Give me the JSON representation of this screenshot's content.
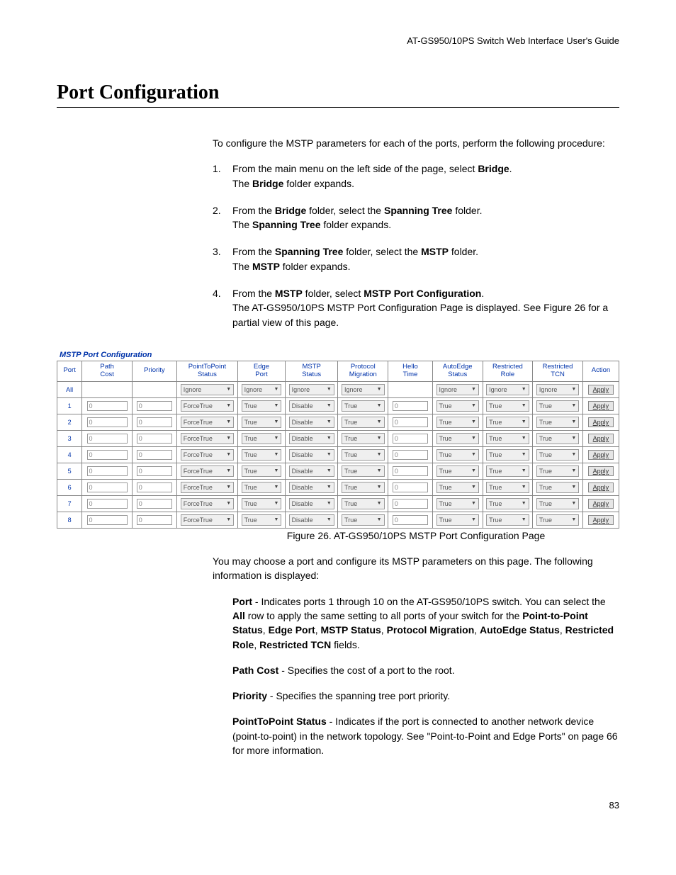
{
  "header": {
    "guide_title": "AT-GS950/10PS Switch Web Interface User's Guide"
  },
  "page": {
    "title": "Port Configuration",
    "intro": "To configure the MSTP parameters for each of the ports, perform the following procedure:",
    "page_number": "83"
  },
  "steps": [
    {
      "num": "1.",
      "parts": [
        "From the main menu on the left side of the page, select ",
        "Bridge",
        "."
      ],
      "after": [
        "The ",
        "Bridge",
        " folder expands."
      ]
    },
    {
      "num": "2.",
      "parts": [
        "From the ",
        "Bridge",
        " folder, select the ",
        "Spanning Tree",
        " folder."
      ],
      "after": [
        "The ",
        "Spanning Tree",
        " folder expands."
      ]
    },
    {
      "num": "3.",
      "parts": [
        "From the ",
        "Spanning Tree",
        " folder, select the ",
        "MSTP",
        " folder."
      ],
      "after": [
        "The ",
        "MSTP",
        " folder expands."
      ]
    },
    {
      "num": "4.",
      "parts": [
        "From the ",
        "MSTP",
        " folder, select ",
        "MSTP Port Configuration",
        "."
      ],
      "after_plain": "The AT-GS950/10PS MSTP Port Configuration Page is displayed. See Figure 26 for a partial view of this page."
    }
  ],
  "figure": {
    "title": "MSTP Port Configuration",
    "caption": "Figure 26. AT-GS950/10PS MSTP Port Configuration Page",
    "headers": [
      "Port",
      "Path Cost",
      "Priority",
      "PointToPoint Status",
      "Edge Port",
      "MSTP Status",
      "Protocol Migration",
      "Hello Time",
      "AutoEdge Status",
      "Restricted Role",
      "Restricted TCN",
      "Action"
    ],
    "apply_label": "Apply",
    "all_row": {
      "port": "All",
      "ptp": "Ignore",
      "edge": "Ignore",
      "mstp": "Ignore",
      "proto": "Ignore",
      "auto": "Ignore",
      "rrole": "Ignore",
      "rtcn": "Ignore"
    },
    "row_defaults": {
      "path_cost": "0",
      "priority": "0",
      "ptp": "ForceTrue",
      "edge": "True",
      "mstp": "Disable",
      "proto": "True",
      "hello": "0",
      "auto": "True",
      "rrole": "True",
      "rtcn": "True"
    },
    "ports": [
      "1",
      "2",
      "3",
      "4",
      "5",
      "6",
      "7",
      "8"
    ]
  },
  "post": {
    "para1": "You may choose a port and configure its MSTP parameters on this page. The following information is displayed:",
    "port_label": "Port",
    "port_text_a": " - Indicates ports 1 through 10 on the AT-GS950/10PS switch. You can select the ",
    "port_all": "All",
    "port_text_b": " row to apply the same setting to all ports of your switch for the ",
    "bold_list": [
      "Point-to-Point Status",
      "Edge Port",
      "MSTP Status",
      "Protocol Migration",
      "AutoEdge Status",
      "Restricted Role",
      "Restricted TCN"
    ],
    "port_text_c": " fields.",
    "pathcost_label": "Path Cost",
    "pathcost_text": " - Specifies the cost of a port to the root.",
    "priority_label": "Priority",
    "priority_text": " - Specifies the spanning tree port priority.",
    "ptp_label": "PointToPoint Status",
    "ptp_text": " - Indicates if the port is connected to another network device (point-to-point) in the network topology. See \"Point-to-Point and Edge Ports\" on page 66 for more information."
  }
}
